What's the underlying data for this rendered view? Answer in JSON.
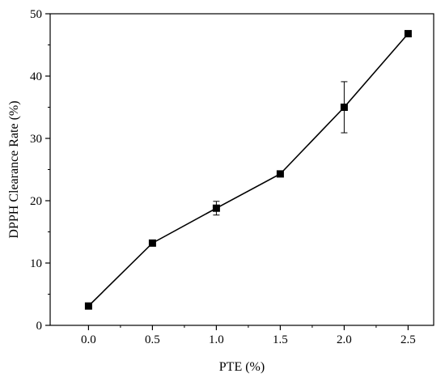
{
  "chart_data": {
    "type": "line",
    "title": "",
    "xlabel": "PTE (%)",
    "ylabel": "DPPH Clearance Rate (%)",
    "xlim": [
      -0.3,
      2.7
    ],
    "ylim": [
      0,
      50
    ],
    "grid": false,
    "x_ticks": [
      "0.0",
      "0.5",
      "1.0",
      "1.5",
      "2.0",
      "2.5"
    ],
    "y_ticks": [
      "0",
      "10",
      "20",
      "30",
      "40",
      "50"
    ],
    "series": [
      {
        "x": [
          0.0,
          0.5,
          1.0,
          1.5,
          2.0,
          2.5
        ],
        "y": [
          3.1,
          13.2,
          18.8,
          24.3,
          35.0,
          46.8
        ],
        "error": [
          0.3,
          0.3,
          1.1,
          0.3,
          4.1,
          0.5
        ],
        "marker": "square",
        "color": "#000000"
      }
    ]
  }
}
